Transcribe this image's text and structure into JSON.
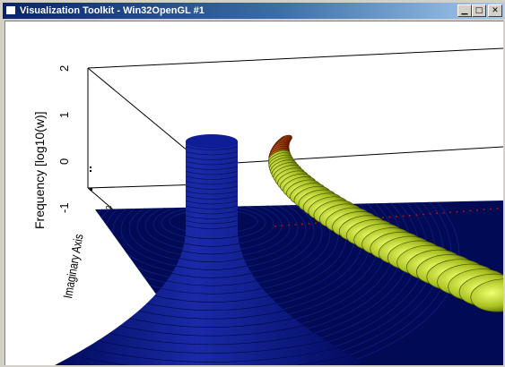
{
  "window": {
    "title": "Visualization Toolkit - Win32OpenGL #1",
    "buttons": {
      "minimize": "▁",
      "maximize": "□",
      "close": "✕"
    }
  },
  "scene": {
    "axis_labels": {
      "frequency": "Frequency [log10(w)]",
      "imaginary": "Imaginary Axis"
    },
    "frequency_ticks": [
      "2",
      "1",
      "0",
      "-1"
    ],
    "small_tick": "2",
    "colors": {
      "background": "#ffffff",
      "floor": "#000a55",
      "cylinder": "#0a1680",
      "spiral_yellow": "#ccdd33",
      "spiral_red": "#b03010"
    }
  }
}
